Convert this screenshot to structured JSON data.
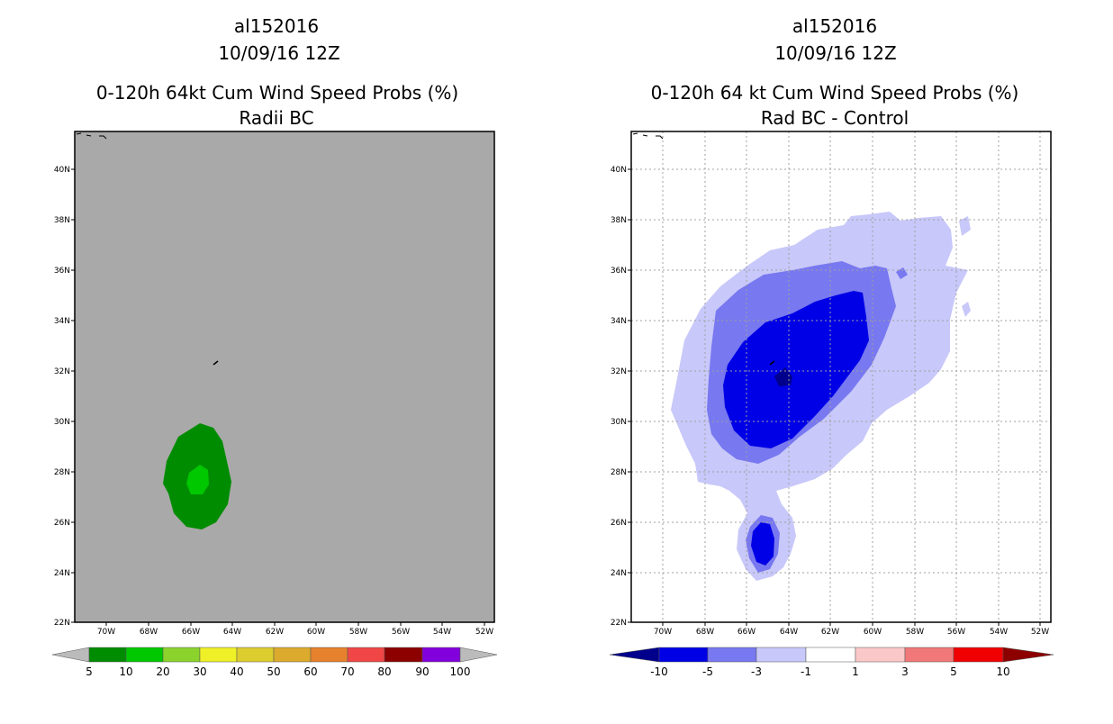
{
  "left_panel": {
    "storm_id": "al152016",
    "datetime": "10/09/16 12Z",
    "title": "0-120h 64kt Cum Wind Speed Probs (%)",
    "subtitle": "Radii BC",
    "background_color": "#a9a9a9",
    "colorbar": {
      "labels": [
        "5",
        "10",
        "20",
        "30",
        "40",
        "50",
        "60",
        "70",
        "80",
        "90",
        "100"
      ],
      "colors": [
        "#008c00",
        "#00c800",
        "#8cd22d",
        "#f0f028",
        "#dccc2d",
        "#dcaa2d",
        "#e6822d",
        "#f04646",
        "#8c0000",
        "#8200dc"
      ],
      "end_color": "#bbbbbb"
    }
  },
  "right_panel": {
    "storm_id": "al152016",
    "datetime": "10/09/16 12Z",
    "title": "0-120h 64 kt Cum Wind Speed Probs (%)",
    "subtitle": "Rad BC - Control",
    "background_color": "#ffffff",
    "colorbar": {
      "labels": [
        "-10",
        "-5",
        "-3",
        "-1",
        "1",
        "3",
        "5",
        "10"
      ],
      "colors": [
        "#0000e6",
        "#7878f0",
        "#c8c8fa",
        "#ffffff",
        "#fac8c8",
        "#f07878",
        "#f00000"
      ],
      "left_end_color": "#00008c",
      "right_end_color": "#8c0000"
    }
  },
  "axes": {
    "lat_labels": [
      "40N",
      "38N",
      "36N",
      "34N",
      "32N",
      "30N",
      "28N",
      "26N",
      "24N",
      "22N"
    ],
    "lon_labels": [
      "70W",
      "68W",
      "66W",
      "64W",
      "62W",
      "60W",
      "58W",
      "56W",
      "54W",
      "52W"
    ]
  }
}
